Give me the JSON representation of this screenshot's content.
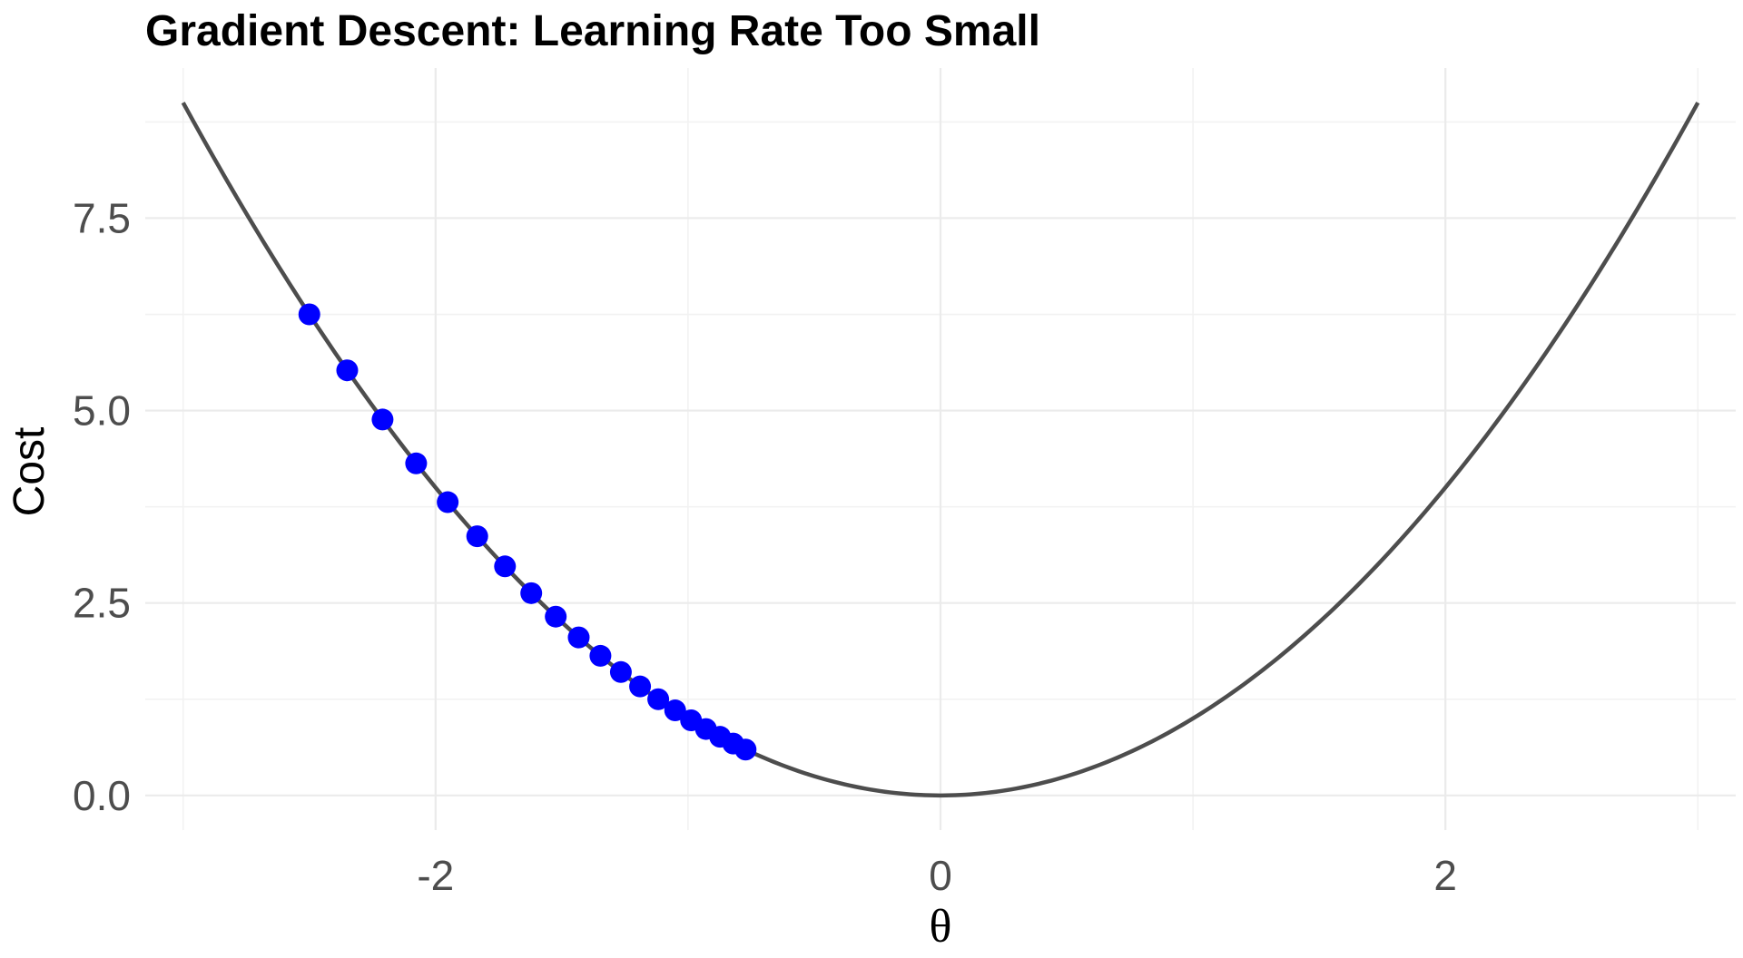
{
  "chart_data": {
    "type": "scatter",
    "title": "Gradient Descent: Learning Rate Too Small",
    "xlabel": "θ",
    "ylabel": "Cost",
    "xlim": [
      -3.15,
      3.15
    ],
    "ylim": [
      -0.45,
      9.45
    ],
    "x_ticks": [
      -2,
      0,
      2
    ],
    "x_tick_labels": [
      "-2",
      "0",
      "2"
    ],
    "y_ticks": [
      0.0,
      2.5,
      5.0,
      7.5
    ],
    "y_tick_labels": [
      "0.0",
      "2.5",
      "5.0",
      "7.5"
    ],
    "grid": true,
    "curve": {
      "function": "cost = θ^2",
      "x_range": [
        -3,
        3
      ],
      "color": "#4d4d4d"
    },
    "points": {
      "color": "#0000ff",
      "x": [
        -2.5,
        -2.35,
        -2.21,
        -2.077,
        -1.952,
        -1.835,
        -1.725,
        -1.621,
        -1.524,
        -1.433,
        -1.347,
        -1.266,
        -1.19,
        -1.118,
        -1.051,
        -0.988,
        -0.929,
        -0.873,
        -0.821,
        -0.772
      ],
      "y": [
        6.25,
        5.523,
        4.884,
        4.314,
        3.81,
        3.367,
        2.976,
        2.628,
        2.323,
        2.053,
        1.814,
        1.603,
        1.416,
        1.25,
        1.105,
        0.976,
        0.863,
        0.762,
        0.674,
        0.596
      ]
    }
  }
}
